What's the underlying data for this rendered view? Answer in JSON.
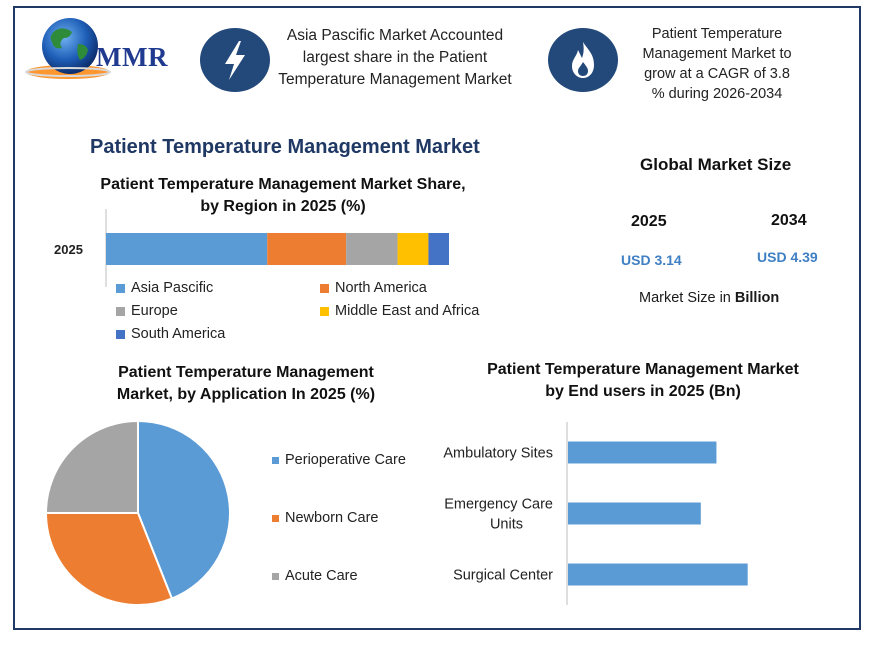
{
  "brand": {
    "logo_text": "MMR"
  },
  "highlights": [
    {
      "icon": "lightning-icon",
      "text": "Asia Pascific Market Accounted largest share in the Patient Temperature Management Market"
    },
    {
      "icon": "flame-icon",
      "text": "Patient Temperature Management Market to grow at a CAGR of 3.8 % during 2026-2034"
    }
  ],
  "main_title": "Patient Temperature Management Market",
  "global_size": {
    "title": "Global Market Size",
    "years": [
      "2025",
      "2034"
    ],
    "values": [
      "USD 3.14",
      "USD 4.39"
    ],
    "note_prefix": "Market Size in ",
    "note_bold": "Billion"
  },
  "colors": {
    "frame": "#1f3864",
    "blue": "#5b9bd5",
    "orange": "#ed7d31",
    "gray": "#a5a5a5",
    "yellow": "#ffc000",
    "darkblue": "#4472c4",
    "icon_bg": "#23497a"
  },
  "chart_data": [
    {
      "type": "bar",
      "orientation": "horizontal-stacked",
      "title": "Patient Temperature Management Market Share, by Region in 2025 (%)",
      "categories": [
        "2025"
      ],
      "series": [
        {
          "name": "Asia Pascific",
          "values": [
            47
          ],
          "color": "#5b9bd5"
        },
        {
          "name": "North America",
          "values": [
            23
          ],
          "color": "#ed7d31"
        },
        {
          "name": "Europe",
          "values": [
            15
          ],
          "color": "#a5a5a5"
        },
        {
          "name": "Middle East and Africa",
          "values": [
            9
          ],
          "color": "#ffc000"
        },
        {
          "name": "South America",
          "values": [
            6
          ],
          "color": "#4472c4"
        }
      ],
      "legend": "bottom"
    },
    {
      "type": "pie",
      "title": "Patient Temperature Management Market, by Application In 2025 (%)",
      "series": [
        {
          "name": "Perioperative Care",
          "value": 44,
          "color": "#5b9bd5"
        },
        {
          "name": "Newborn Care",
          "value": 31,
          "color": "#ed7d31"
        },
        {
          "name": "Acute Care",
          "value": 25,
          "color": "#a5a5a5"
        }
      ],
      "legend": "right"
    },
    {
      "type": "bar",
      "orientation": "horizontal",
      "title": "Patient Temperature Management Market by End users in 2025 (Bn)",
      "categories": [
        "Ambulatory Sites",
        "Emergency Care Units",
        "Surgical Center"
      ],
      "values": [
        0.95,
        0.85,
        1.15
      ],
      "color": "#5b9bd5",
      "xlim": [
        0,
        1.6
      ]
    }
  ]
}
